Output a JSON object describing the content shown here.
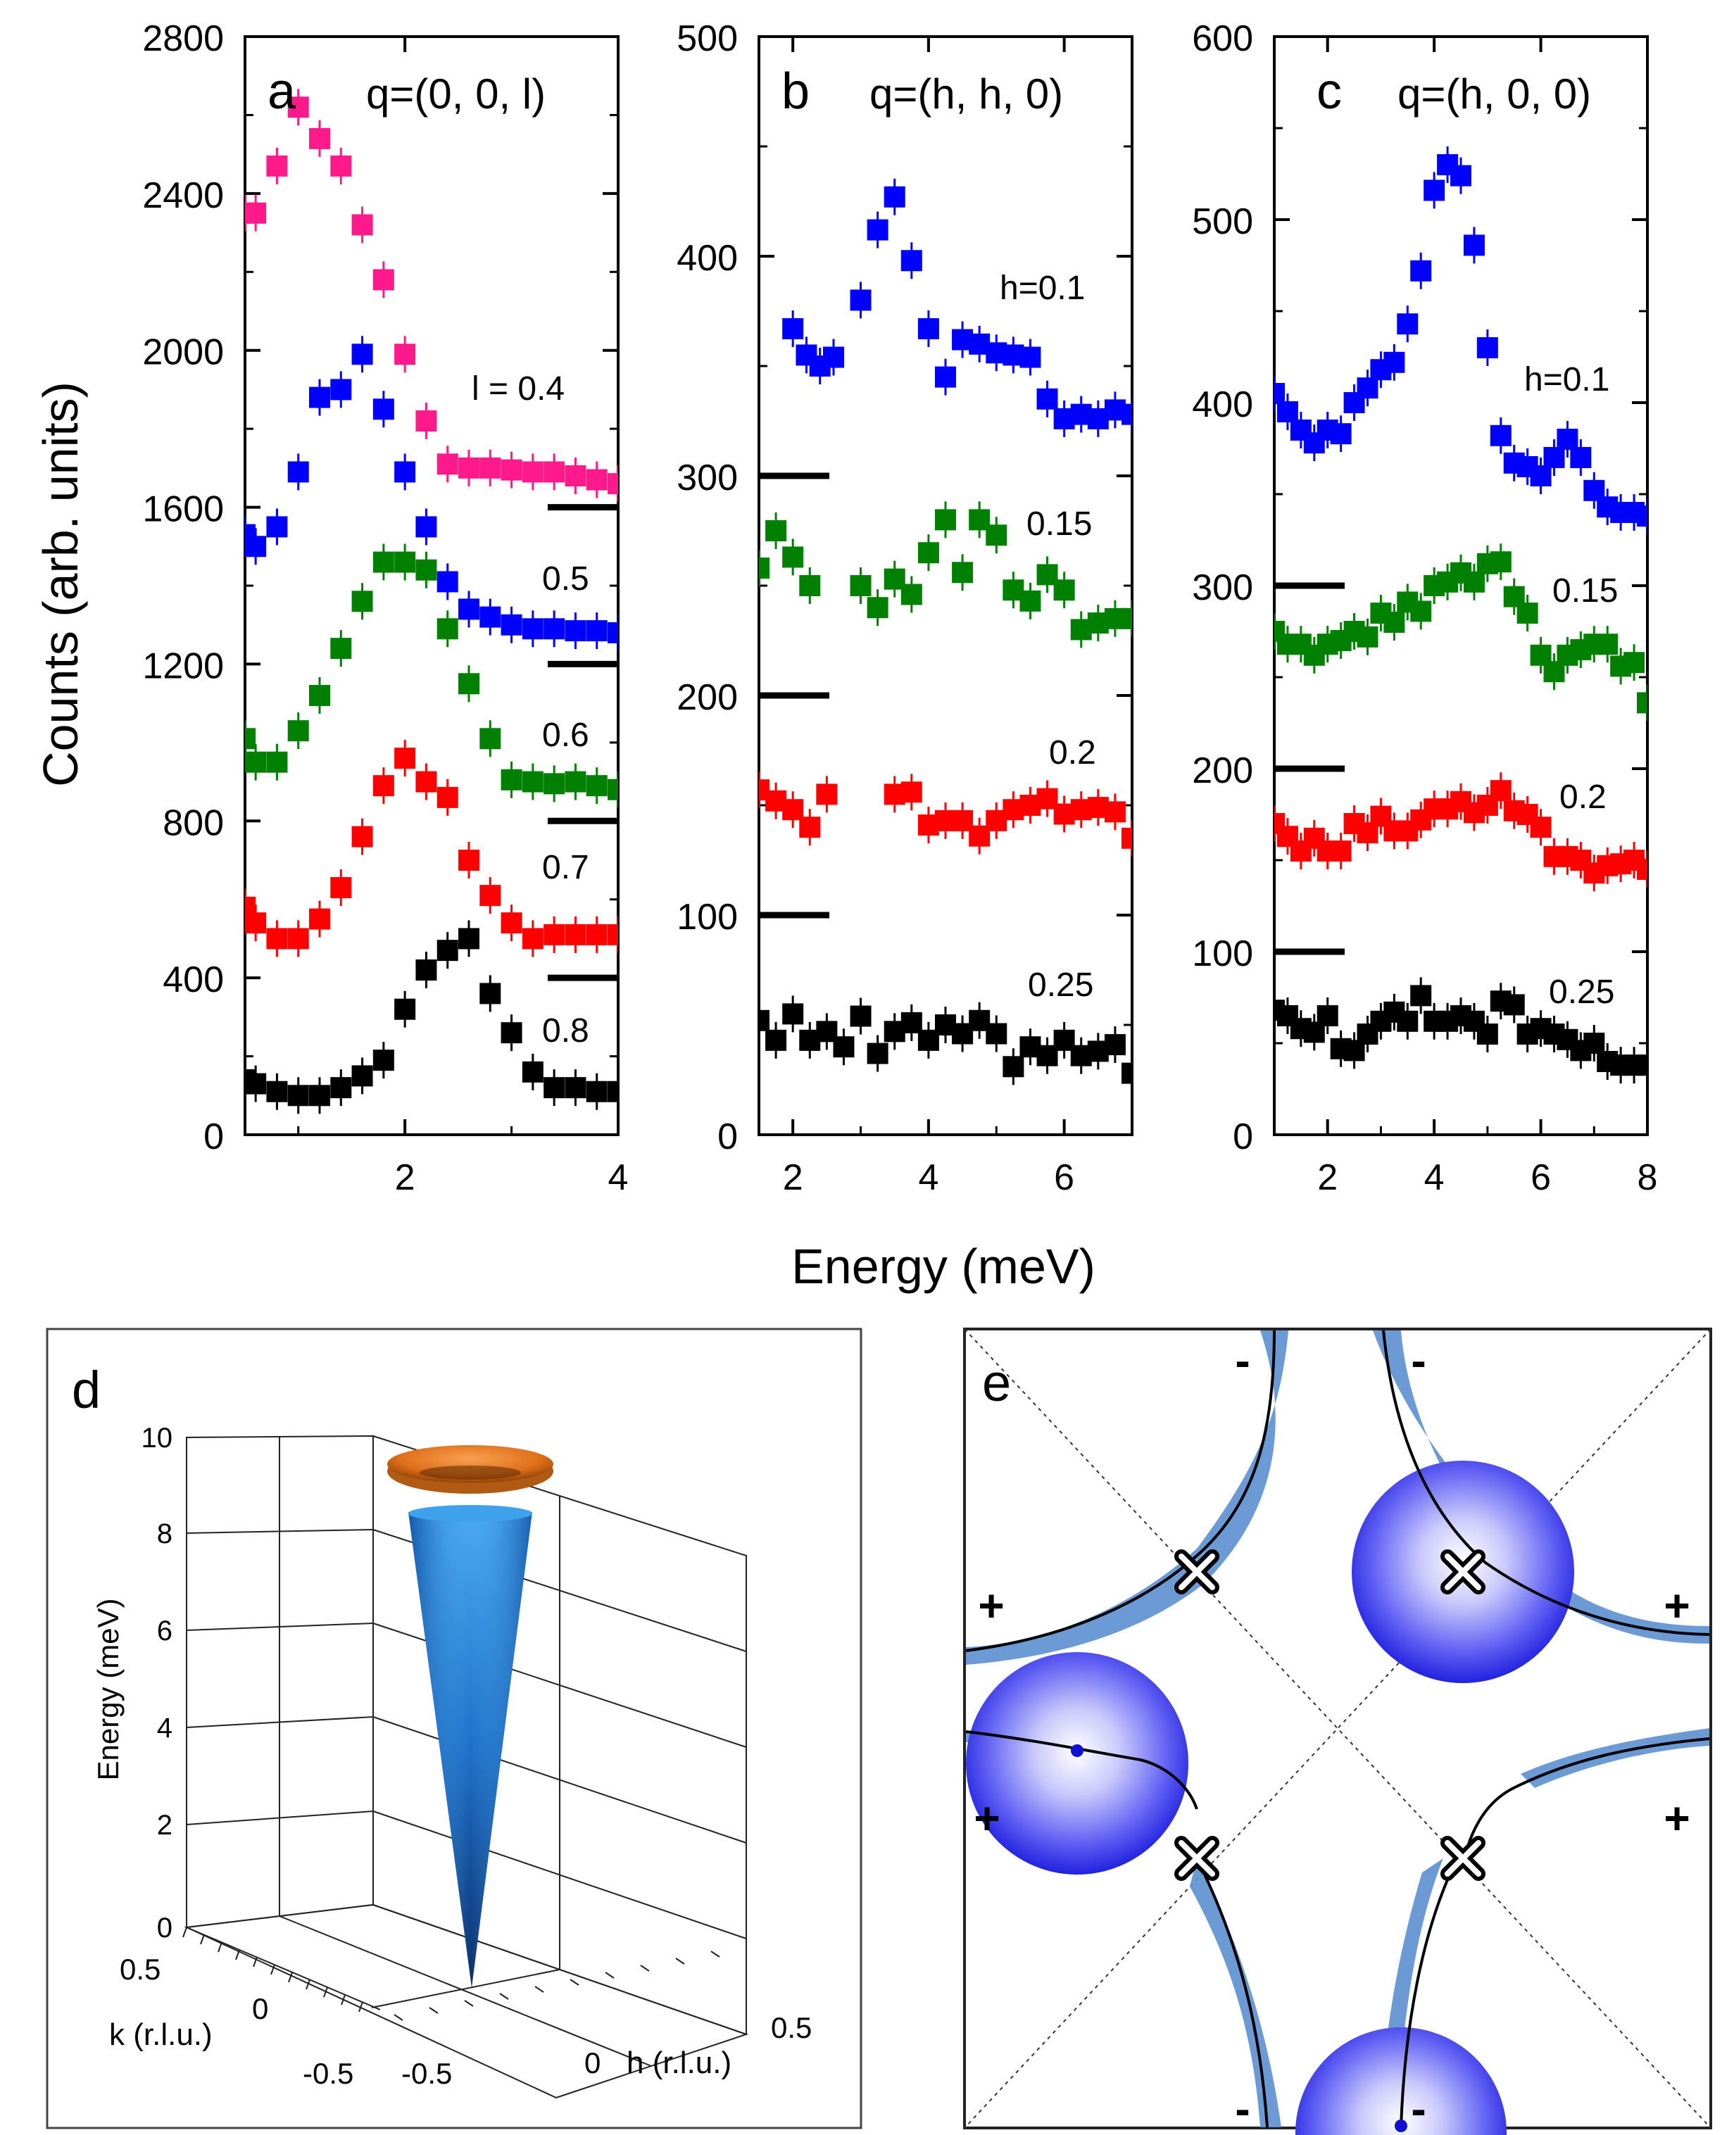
{
  "chart_data": [
    {
      "id": "a",
      "type": "scatter",
      "panel_label": "a",
      "title": "q=(0, 0, l)",
      "xlabel": "Energy (meV)",
      "ylabel": "Counts (arb. units)",
      "xlim": [
        0.5,
        4
      ],
      "ylim": [
        0,
        2800
      ],
      "xticks": [
        2,
        4
      ],
      "yticks": [
        0,
        400,
        800,
        1200,
        1600,
        2000,
        2400,
        2800
      ],
      "baselines": [
        1600,
        1200,
        800,
        400
      ],
      "series": [
        {
          "name": "l = 0.4",
          "label": "l = 0.4",
          "color": "#ff1a8c",
          "x": [
            0.5,
            0.6,
            0.8,
            1.0,
            1.2,
            1.4,
            1.6,
            1.8,
            2.0,
            2.2,
            2.4,
            2.6,
            2.8,
            3.0,
            3.2,
            3.4,
            3.6,
            3.8,
            4.0
          ],
          "y": [
            2350,
            2350,
            2470,
            2620,
            2540,
            2470,
            2320,
            2180,
            1990,
            1820,
            1710,
            1700,
            1700,
            1695,
            1690,
            1690,
            1680,
            1670,
            1660
          ]
        },
        {
          "name": "0.5",
          "label": "0.5",
          "color": "#0000ff",
          "x": [
            0.5,
            0.6,
            0.8,
            1.0,
            1.2,
            1.4,
            1.6,
            1.8,
            2.0,
            2.2,
            2.4,
            2.6,
            2.8,
            3.0,
            3.2,
            3.4,
            3.6,
            3.8,
            4.0
          ],
          "y": [
            1530,
            1500,
            1550,
            1690,
            1880,
            1900,
            1990,
            1850,
            1690,
            1550,
            1410,
            1340,
            1320,
            1300,
            1290,
            1290,
            1285,
            1285,
            1280
          ]
        },
        {
          "name": "0.6",
          "label": "0.6",
          "color": "#008000",
          "x": [
            0.5,
            0.6,
            0.8,
            1.0,
            1.2,
            1.4,
            1.6,
            1.8,
            2.0,
            2.2,
            2.4,
            2.6,
            2.8,
            3.0,
            3.2,
            3.4,
            3.6,
            3.8,
            4.0
          ],
          "y": [
            1010,
            950,
            950,
            1030,
            1120,
            1240,
            1360,
            1460,
            1460,
            1440,
            1290,
            1150,
            1010,
            905,
            900,
            895,
            900,
            890,
            880
          ]
        },
        {
          "name": "0.7",
          "label": "0.7",
          "color": "#ff0000",
          "x": [
            0.5,
            0.6,
            0.8,
            1.0,
            1.2,
            1.4,
            1.6,
            1.8,
            2.0,
            2.2,
            2.4,
            2.6,
            2.8,
            3.0,
            3.2,
            3.4,
            3.6,
            3.8,
            4.0
          ],
          "y": [
            580,
            540,
            500,
            500,
            550,
            630,
            760,
            890,
            960,
            900,
            860,
            700,
            610,
            540,
            500,
            510,
            510,
            510,
            510
          ]
        },
        {
          "name": "0.8",
          "label": "0.8",
          "color": "#000000",
          "x": [
            0.5,
            0.6,
            0.8,
            1.0,
            1.2,
            1.4,
            1.6,
            1.8,
            2.0,
            2.2,
            2.4,
            2.6,
            2.8,
            3.0,
            3.2,
            3.4,
            3.6,
            3.8,
            4.0
          ],
          "y": [
            140,
            130,
            110,
            100,
            100,
            120,
            150,
            190,
            320,
            420,
            470,
            500,
            360,
            260,
            160,
            120,
            120,
            110,
            110
          ]
        }
      ]
    },
    {
      "id": "b",
      "type": "scatter",
      "panel_label": "b",
      "title": "q=(h, h, 0)",
      "xlabel": "Energy (meV)",
      "xlim": [
        1.5,
        7
      ],
      "ylim": [
        0,
        500
      ],
      "xticks": [
        2,
        4,
        6
      ],
      "yticks": [
        0,
        100,
        200,
        300,
        400,
        500
      ],
      "baselines": [
        300,
        200,
        100
      ],
      "series": [
        {
          "name": "h=0.1",
          "label": "h=0.1",
          "color": "#0000ff",
          "x": [
            2.0,
            2.2,
            2.4,
            2.6,
            3.0,
            3.25,
            3.5,
            3.75,
            4.0,
            4.25,
            4.5,
            4.75,
            5.0,
            5.25,
            5.5,
            5.75,
            6.0,
            6.25,
            6.5,
            6.75,
            7.0
          ],
          "y": [
            367,
            355,
            350,
            354,
            380,
            412,
            427,
            398,
            367,
            345,
            362,
            360,
            356,
            355,
            354,
            335,
            326,
            328,
            326,
            330,
            328
          ]
        },
        {
          "name": "0.15",
          "label": "0.15",
          "color": "#008000",
          "x": [
            1.5,
            1.75,
            2.0,
            2.25,
            3.0,
            3.25,
            3.5,
            3.75,
            4.0,
            4.25,
            4.5,
            4.75,
            5.0,
            5.25,
            5.5,
            5.75,
            6.0,
            6.25,
            6.5,
            6.75,
            7.0
          ],
          "y": [
            258,
            275,
            263,
            250,
            250,
            240,
            253,
            246,
            265,
            280,
            256,
            280,
            273,
            248,
            243,
            255,
            248,
            230,
            233,
            235,
            235
          ]
        },
        {
          "name": "0.2",
          "label": "0.2",
          "color": "#ff0000",
          "x": [
            1.5,
            1.75,
            2.0,
            2.25,
            2.5,
            3.5,
            3.75,
            4.0,
            4.25,
            4.5,
            4.75,
            5.0,
            5.25,
            5.5,
            5.75,
            6.0,
            6.25,
            6.5,
            6.75,
            7.0
          ],
          "y": [
            157,
            152,
            148,
            140,
            155,
            155,
            156,
            141,
            143,
            143,
            136,
            143,
            148,
            150,
            153,
            146,
            148,
            149,
            147,
            135
          ]
        },
        {
          "name": "0.25",
          "label": "0.25",
          "color": "#000000",
          "x": [
            1.5,
            1.75,
            2.0,
            2.25,
            2.5,
            2.75,
            3.0,
            3.25,
            3.5,
            3.75,
            4.0,
            4.25,
            4.5,
            4.75,
            5.0,
            5.25,
            5.5,
            5.75,
            6.0,
            6.25,
            6.5,
            6.75,
            7.0
          ],
          "y": [
            52,
            43,
            55,
            43,
            47,
            40,
            54,
            37,
            47,
            51,
            43,
            50,
            46,
            52,
            46,
            31,
            40,
            36,
            43,
            36,
            38,
            41,
            28
          ]
        }
      ]
    },
    {
      "id": "c",
      "type": "scatter",
      "panel_label": "c",
      "title": "q=(h,  0, 0)",
      "xlabel": "Energy (meV)",
      "xlim": [
        1,
        8
      ],
      "ylim": [
        0,
        600
      ],
      "xticks": [
        2,
        4,
        6,
        8
      ],
      "yticks": [
        0,
        100,
        200,
        300,
        400,
        500,
        600
      ],
      "baselines": [
        300,
        200,
        100
      ],
      "series": [
        {
          "name": "h=0.1",
          "label": "h=0.1",
          "color": "#0000ff",
          "x": [
            1.0,
            1.25,
            1.5,
            1.75,
            2.0,
            2.25,
            2.5,
            2.75,
            3.0,
            3.25,
            3.5,
            3.75,
            4.0,
            4.25,
            4.5,
            4.75,
            5.0,
            5.25,
            5.5,
            5.75,
            6.0,
            6.25,
            6.5,
            6.75,
            7.0,
            7.25,
            7.5,
            7.75,
            8.0
          ],
          "y": [
            405,
            395,
            385,
            378,
            385,
            383,
            400,
            408,
            418,
            422,
            443,
            472,
            516,
            530,
            524,
            486,
            430,
            382,
            367,
            365,
            360,
            370,
            380,
            370,
            352,
            343,
            340,
            340,
            338
          ]
        },
        {
          "name": "0.15",
          "label": "0.15",
          "color": "#008000",
          "x": [
            1.0,
            1.25,
            1.5,
            1.75,
            2.0,
            2.25,
            2.5,
            2.75,
            3.0,
            3.25,
            3.5,
            3.75,
            4.0,
            4.25,
            4.5,
            4.75,
            5.0,
            5.25,
            5.5,
            5.75,
            6.0,
            6.25,
            6.5,
            6.75,
            7.0,
            7.25,
            7.5,
            7.75,
            8.0
          ],
          "y": [
            275,
            268,
            268,
            262,
            268,
            270,
            275,
            272,
            285,
            280,
            291,
            286,
            300,
            302,
            307,
            302,
            312,
            313,
            294,
            285,
            262,
            253,
            262,
            265,
            268,
            268,
            256,
            258,
            236
          ]
        },
        {
          "name": "0.2",
          "label": "0.2",
          "color": "#ff0000",
          "x": [
            1.0,
            1.25,
            1.5,
            1.75,
            2.0,
            2.25,
            2.5,
            2.75,
            3.0,
            3.25,
            3.5,
            3.75,
            4.0,
            4.25,
            4.5,
            4.75,
            5.0,
            5.25,
            5.5,
            5.75,
            6.0,
            6.25,
            6.5,
            6.75,
            7.0,
            7.25,
            7.5,
            7.75,
            8.0
          ],
          "y": [
            170,
            163,
            155,
            162,
            155,
            155,
            170,
            165,
            174,
            166,
            166,
            172,
            178,
            178,
            182,
            176,
            180,
            188,
            177,
            175,
            168,
            152,
            152,
            150,
            143,
            147,
            148,
            150,
            145
          ]
        },
        {
          "name": "0.25",
          "label": "0.25",
          "color": "#000000",
          "x": [
            1.0,
            1.25,
            1.5,
            1.75,
            2.0,
            2.25,
            2.5,
            2.75,
            3.0,
            3.25,
            3.5,
            3.75,
            4.0,
            4.25,
            4.5,
            4.75,
            5.0,
            5.25,
            5.5,
            5.75,
            6.0,
            6.25,
            6.5,
            6.75,
            7.0,
            7.25,
            7.5,
            7.75,
            8.0
          ],
          "y": [
            68,
            65,
            58,
            56,
            65,
            47,
            46,
            55,
            62,
            67,
            62,
            76,
            62,
            62,
            65,
            62,
            55,
            73,
            71,
            55,
            58,
            55,
            52,
            46,
            50,
            40,
            38,
            38,
            38
          ]
        }
      ]
    }
  ],
  "shared_xlabel": "Energy (meV)",
  "panel_d": {
    "label": "d",
    "zlabel": "Energy (meV)",
    "zticks": [
      "0",
      "2",
      "4",
      "6",
      "8",
      "10"
    ],
    "klabel": "k (r.l.u.)",
    "kticks": [
      "0.5",
      "0",
      "-0.5"
    ],
    "hlabel": "h (r.l.u.)",
    "hticks": [
      "-0.5",
      "0",
      "0.5"
    ],
    "cone_color": "#1f7fd6",
    "disc_color": "#e8761e"
  },
  "panel_e": {
    "label": "e",
    "signs": [
      "-",
      "-",
      "+",
      "+",
      "+",
      "+",
      "-",
      "-"
    ],
    "sphere_color": "#2b2bf0",
    "band_color": "#5b8fd0"
  }
}
